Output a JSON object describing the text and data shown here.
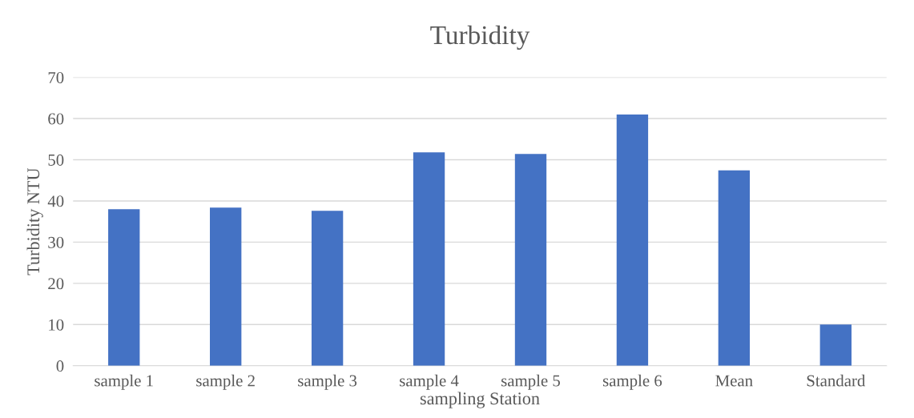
{
  "chart_data": {
    "type": "bar",
    "title": "Turbidity",
    "xlabel": "sampling Station",
    "ylabel": "Turbidity NTU",
    "categories": [
      "sample 1",
      "sample 2",
      "sample 3",
      "sample 4",
      "sample 5",
      "sample 6",
      "Mean",
      "Standard"
    ],
    "values": [
      38.0,
      38.4,
      37.6,
      51.8,
      51.4,
      61.0,
      47.4,
      10.0
    ],
    "color": "#4472c4",
    "ylim": [
      0,
      70
    ],
    "yticks": [
      0,
      10,
      20,
      30,
      40,
      50,
      60,
      70
    ],
    "grid": "y",
    "legend": false
  }
}
